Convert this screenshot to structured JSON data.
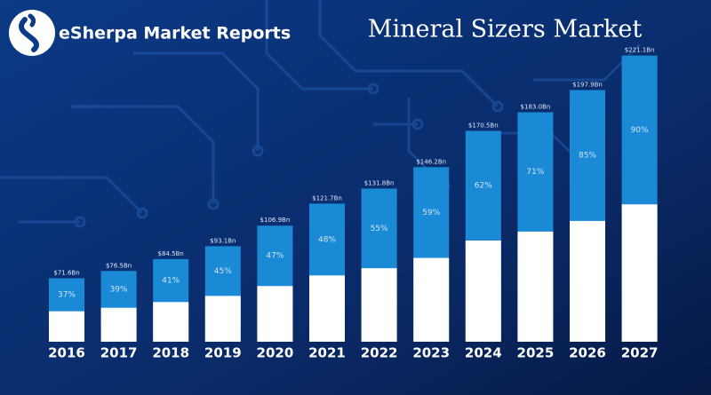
{
  "brand": "eSherpa Market Reports",
  "chart_data": {
    "type": "bar",
    "title": "Mineral Sizers Market",
    "categories": [
      "2016",
      "2017",
      "2018",
      "2019",
      "2020",
      "2021",
      "2022",
      "2023",
      "2024",
      "2025",
      "2026",
      "2027"
    ],
    "values": [
      71.6,
      76.5,
      84.5,
      93.1,
      106.9,
      121.7,
      131.8,
      146.2,
      170.5,
      183.0,
      197.9,
      221.1
    ],
    "value_labels": [
      "$71.6Bn",
      "$76.5Bn",
      "$84.5Bn",
      "$93.1Bn",
      "$106.9Bn",
      "$121.7Bn",
      "$131.8Bn",
      "$146.2Bn",
      "$170.5Bn",
      "$183.0Bn",
      "$197.9Bn",
      "$221.1Bn"
    ],
    "shares": [
      37,
      39,
      41,
      45,
      47,
      48,
      55,
      59,
      62,
      71,
      85,
      90
    ],
    "share_labels": [
      "37%",
      "39%",
      "41%",
      "45%",
      "47%",
      "48%",
      "55%",
      "59%",
      "62%",
      "71%",
      "85%",
      "90%"
    ],
    "color": "#1a8ad6",
    "base_color": "#ffffff",
    "ylim": [
      29,
      225
    ]
  }
}
